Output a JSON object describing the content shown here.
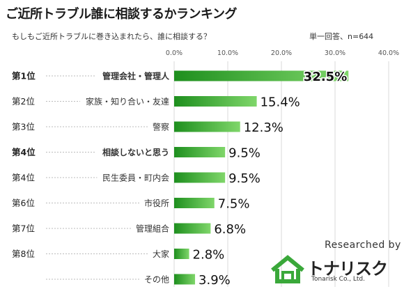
{
  "header": {
    "title": "ご近所トラブル誰に相談するかランキング",
    "subtitle": "もしもご近所トラブルに巻き込まれたら、誰に相談する？",
    "note": "単一回答、n=644"
  },
  "chart_data": {
    "type": "bar",
    "orientation": "horizontal",
    "categories": [
      "管理会社・管理人",
      "家族・知り合い・友達",
      "警察",
      "相談しないと思う",
      "民生委員・町内会",
      "市役所",
      "管理組合",
      "大家",
      "その他"
    ],
    "ranks": [
      "第1位",
      "第2位",
      "第3位",
      "第4位",
      "第4位",
      "第6位",
      "第7位",
      "第8位",
      ""
    ],
    "values": [
      32.5,
      15.4,
      12.3,
      9.5,
      9.5,
      7.5,
      6.8,
      2.8,
      3.9
    ],
    "value_labels": [
      "32.5%",
      "15.4%",
      "12.3%",
      "9.5%",
      "9.5%",
      "7.5%",
      "6.8%",
      "2.8%",
      "3.9%"
    ],
    "bold_categories": [
      true,
      false,
      false,
      true,
      false,
      false,
      false,
      false,
      false
    ],
    "xlim": [
      0,
      40
    ],
    "xticks": [
      0,
      10,
      20,
      30,
      40
    ],
    "xtick_labels": [
      "0.0%",
      "10.0%",
      "20.0%",
      "30.0%",
      "40.0%"
    ],
    "grid": true,
    "bar_color_dark": "#1e8f1e",
    "bar_color_light": "#7fd66a"
  },
  "branding": {
    "researched_by": "Researched by",
    "logo_name": "トナリスク",
    "logo_sub": "Tonarisk Co., Ltd.",
    "logo_color": "#3aa83a"
  }
}
